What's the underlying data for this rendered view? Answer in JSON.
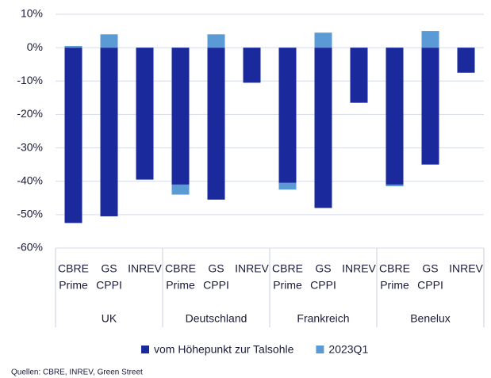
{
  "chart_data": {
    "type": "bar",
    "groups": [
      "UK",
      "Deutschland",
      "Frankreich",
      "Benelux"
    ],
    "subcategories": [
      [
        "CBRE",
        "Prime"
      ],
      [
        "GS",
        "CPPI"
      ],
      [
        "INREV"
      ]
    ],
    "series": [
      {
        "name": "vom Höhepunkt zur Talsohle",
        "color": "#1a2a9c",
        "values": [
          -52.5,
          -50.5,
          -39.5,
          -41,
          -45.5,
          -10.5,
          -40.5,
          -48,
          -16.5,
          -41,
          -35,
          -7.5
        ]
      },
      {
        "name": "2023Q1",
        "color": "#5b9bd5",
        "values": [
          0.5,
          4,
          null,
          -3,
          4,
          null,
          -2,
          4.5,
          null,
          -0.5,
          5,
          null
        ]
      }
    ],
    "stacked": true,
    "ylim": [
      -60,
      10
    ],
    "yticks": [
      {
        "value": -60,
        "label": "-60%"
      },
      {
        "value": -50,
        "label": "-50%"
      },
      {
        "value": -40,
        "label": "-40%"
      },
      {
        "value": -30,
        "label": "-30%"
      },
      {
        "value": -20,
        "label": "-20%"
      },
      {
        "value": -10,
        "label": "-10%"
      },
      {
        "value": 0,
        "label": "0%"
      },
      {
        "value": 10,
        "label": "10%"
      }
    ],
    "grid": true,
    "source": "Quellen: CBRE, INREV, Green Street"
  }
}
